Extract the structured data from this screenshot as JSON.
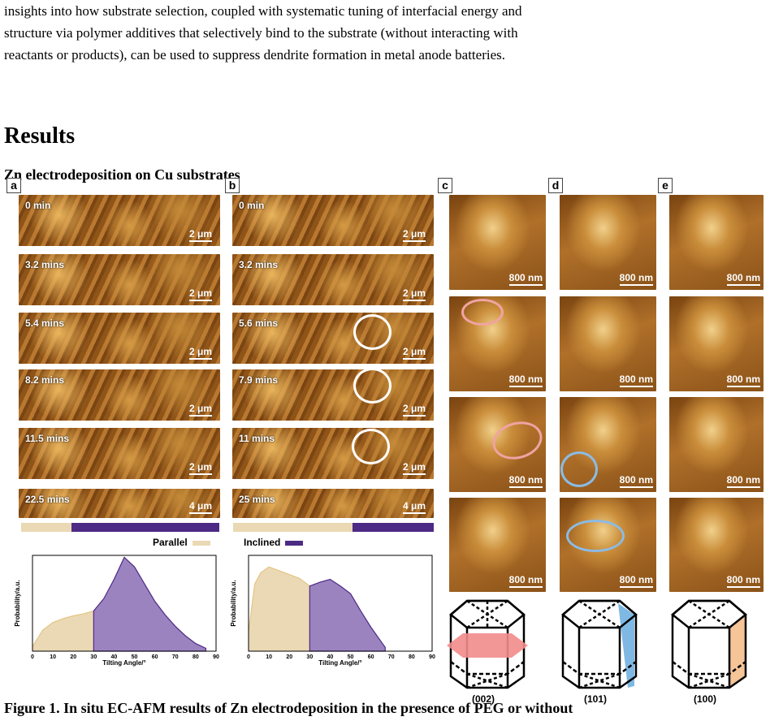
{
  "paragraph_lines": [
    "insights into how substrate selection, coupled with systematic tuning of interfacial energy and",
    "structure via polymer additives that selectively bind to the substrate (without interacting with",
    "reactants or products), can be used to suppress dendrite formation in metal anode batteries."
  ],
  "heading": "Results",
  "subheading": "Zn electrodeposition on Cu substrates",
  "panel_labels": {
    "a": "a",
    "b": "b",
    "c": "c",
    "d": "d",
    "e": "e"
  },
  "panel_a": {
    "times": [
      "0 min",
      "3.2 mins",
      "5.4 mins",
      "8.2 mins",
      "11.5 mins",
      "22.5 mins"
    ],
    "scales": [
      "2 μm",
      "2 μm",
      "2 μm",
      "2 μm",
      "2 μm",
      "4 μm"
    ]
  },
  "panel_b": {
    "times": [
      "0 min",
      "3.2 mins",
      "5.6 mins",
      "7.9 mins",
      "11 mins",
      "25 mins"
    ],
    "scales": [
      "2 μm",
      "2 μm",
      "2 μm",
      "2 μm",
      "2 μm",
      "4 μm"
    ]
  },
  "scale_sq": "800 nm",
  "legend": {
    "parallel": "Parallel",
    "inclined": "Inclined",
    "parallel_color": "#ead9b4",
    "inclined_color": "#4d2a85"
  },
  "chart_data": [
    {
      "type": "area",
      "xlabel": "Tilting Angle/°",
      "ylabel": "Probability/a.u.",
      "xlim": [
        0,
        90
      ],
      "x": [
        0,
        5,
        10,
        15,
        20,
        25,
        30,
        35,
        40,
        45,
        50,
        55,
        60,
        65,
        70,
        75,
        80,
        85
      ],
      "values": [
        0.05,
        0.22,
        0.3,
        0.34,
        0.37,
        0.39,
        0.42,
        0.55,
        0.75,
        0.98,
        0.88,
        0.7,
        0.52,
        0.38,
        0.26,
        0.16,
        0.08,
        0.03
      ],
      "split": 30,
      "ticks": [
        "0",
        "10",
        "20",
        "30",
        "40",
        "50",
        "60",
        "70",
        "80",
        "90"
      ]
    },
    {
      "type": "area",
      "xlabel": "Tilting Angle/°",
      "ylabel": "Probability/a.u.",
      "xlim": [
        0,
        90
      ],
      "x": [
        0,
        3,
        6,
        10,
        15,
        20,
        25,
        30,
        35,
        40,
        45,
        50,
        55,
        60,
        65,
        67
      ],
      "values": [
        0.2,
        0.7,
        0.82,
        0.88,
        0.84,
        0.8,
        0.76,
        0.68,
        0.72,
        0.75,
        0.68,
        0.6,
        0.42,
        0.25,
        0.1,
        0.04
      ],
      "split": 30,
      "ticks": [
        "0",
        "10",
        "20",
        "30",
        "40",
        "50",
        "60",
        "70",
        "80",
        "90"
      ]
    }
  ],
  "miller": [
    "(002)",
    "(101)",
    "(100)"
  ],
  "caption": "Figure 1. In situ EC-AFM results of Zn electrodeposition in the presence of PEG or without"
}
